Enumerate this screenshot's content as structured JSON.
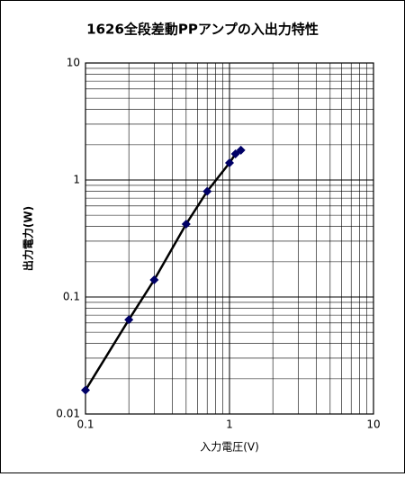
{
  "chart_data": {
    "type": "line",
    "title": "1626全段差動PPアンプの入出力特性",
    "x_label": "入力電圧(V)",
    "y_label": "出力電力(W)",
    "x": [
      0.1,
      0.2,
      0.3,
      0.5,
      0.7,
      1.0,
      1.1,
      1.2
    ],
    "series": [
      {
        "name": "出力電力",
        "color": "#000066",
        "line_color": "#000000",
        "values": [
          0.016,
          0.064,
          0.14,
          0.42,
          0.8,
          1.4,
          1.67,
          1.8
        ]
      }
    ],
    "xlim": [
      0.1,
      10
    ],
    "ylim": [
      0.01,
      10
    ],
    "xticks": [
      0.1,
      1,
      10
    ],
    "yticks": [
      0.01,
      0.1,
      1,
      10
    ],
    "xscale": "log",
    "yscale": "log",
    "grid": "major and minor",
    "legend": false
  }
}
